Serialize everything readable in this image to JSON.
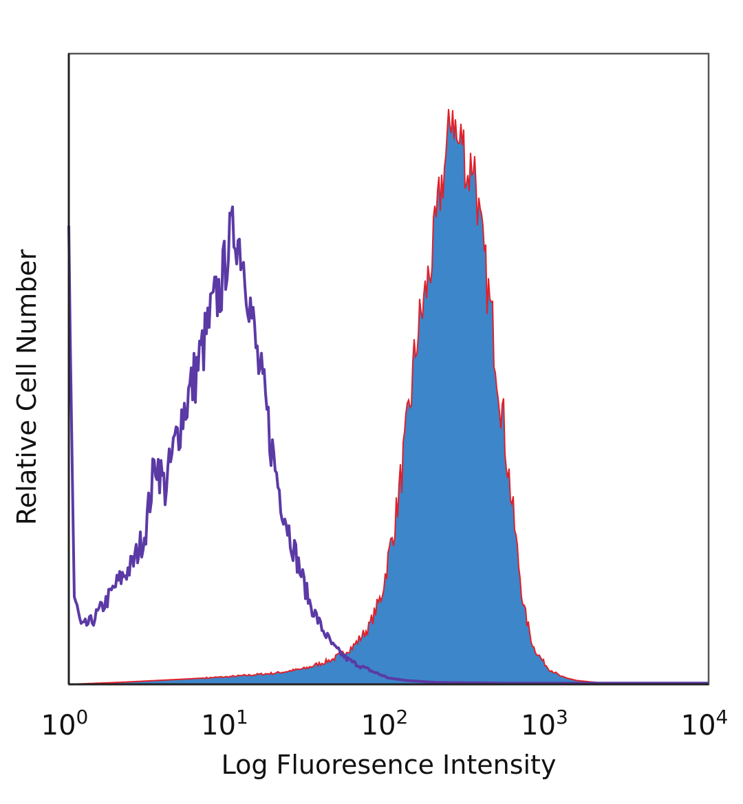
{
  "chart_data": {
    "type": "area",
    "title": "",
    "xlabel": "Log Fluoresence Intensity",
    "ylabel": "Relative Cell Number",
    "x_scale": "log",
    "xlim": [
      1,
      10000
    ],
    "ylim": [
      0,
      100
    ],
    "y_ticks_shown": false,
    "grid": false,
    "legend": "none",
    "x_ticks": [
      {
        "base": "10",
        "exp": "0",
        "value": 1
      },
      {
        "base": "10",
        "exp": "1",
        "value": 10
      },
      {
        "base": "10",
        "exp": "2",
        "value": 100
      },
      {
        "base": "10",
        "exp": "3",
        "value": 1000
      },
      {
        "base": "10",
        "exp": "4",
        "value": 10000
      }
    ],
    "series": [
      {
        "style": "filled",
        "fill_color": "#3d86c9",
        "edge_color": "#e0202a",
        "x": [
          1,
          2,
          5,
          10,
          20,
          30,
          45,
          60,
          75,
          90,
          110,
          130,
          150,
          170,
          190,
          210,
          230,
          250,
          270,
          290,
          310,
          340,
          370,
          400,
          450,
          500,
          560,
          630,
          700,
          800,
          900,
          1000,
          1200,
          1500,
          2000,
          3000,
          10000
        ],
        "values": [
          0,
          0.3,
          0.8,
          1.2,
          1.8,
          2.5,
          4,
          6,
          9,
          14,
          26,
          40,
          55,
          62,
          69,
          78,
          84,
          92,
          85,
          87,
          80,
          84,
          73,
          66,
          56,
          46,
          34,
          22,
          12,
          6,
          4,
          2.5,
          1.2,
          0.6,
          0.3,
          0.1,
          0
        ]
      },
      {
        "style": "line",
        "line_color": "#5b3aa5",
        "x": [
          1,
          1.08,
          1.2,
          1.4,
          1.7,
          2,
          2.5,
          3,
          3.5,
          4,
          5,
          6,
          7,
          8,
          9,
          10,
          11,
          12,
          13,
          14,
          15,
          17,
          19,
          21,
          24,
          28,
          32,
          38,
          45,
          55,
          65,
          80,
          100,
          130,
          200,
          500,
          1000,
          10000
        ],
        "values": [
          72,
          14,
          9,
          10,
          13,
          16,
          19,
          24,
          36,
          31,
          42,
          48,
          54,
          60,
          63,
          70,
          72,
          69,
          64,
          58,
          52,
          44,
          36,
          30,
          24,
          18,
          13,
          9,
          6,
          4,
          3,
          2,
          1,
          0.6,
          0.3,
          0.2,
          0.2,
          0.2
        ]
      }
    ]
  }
}
